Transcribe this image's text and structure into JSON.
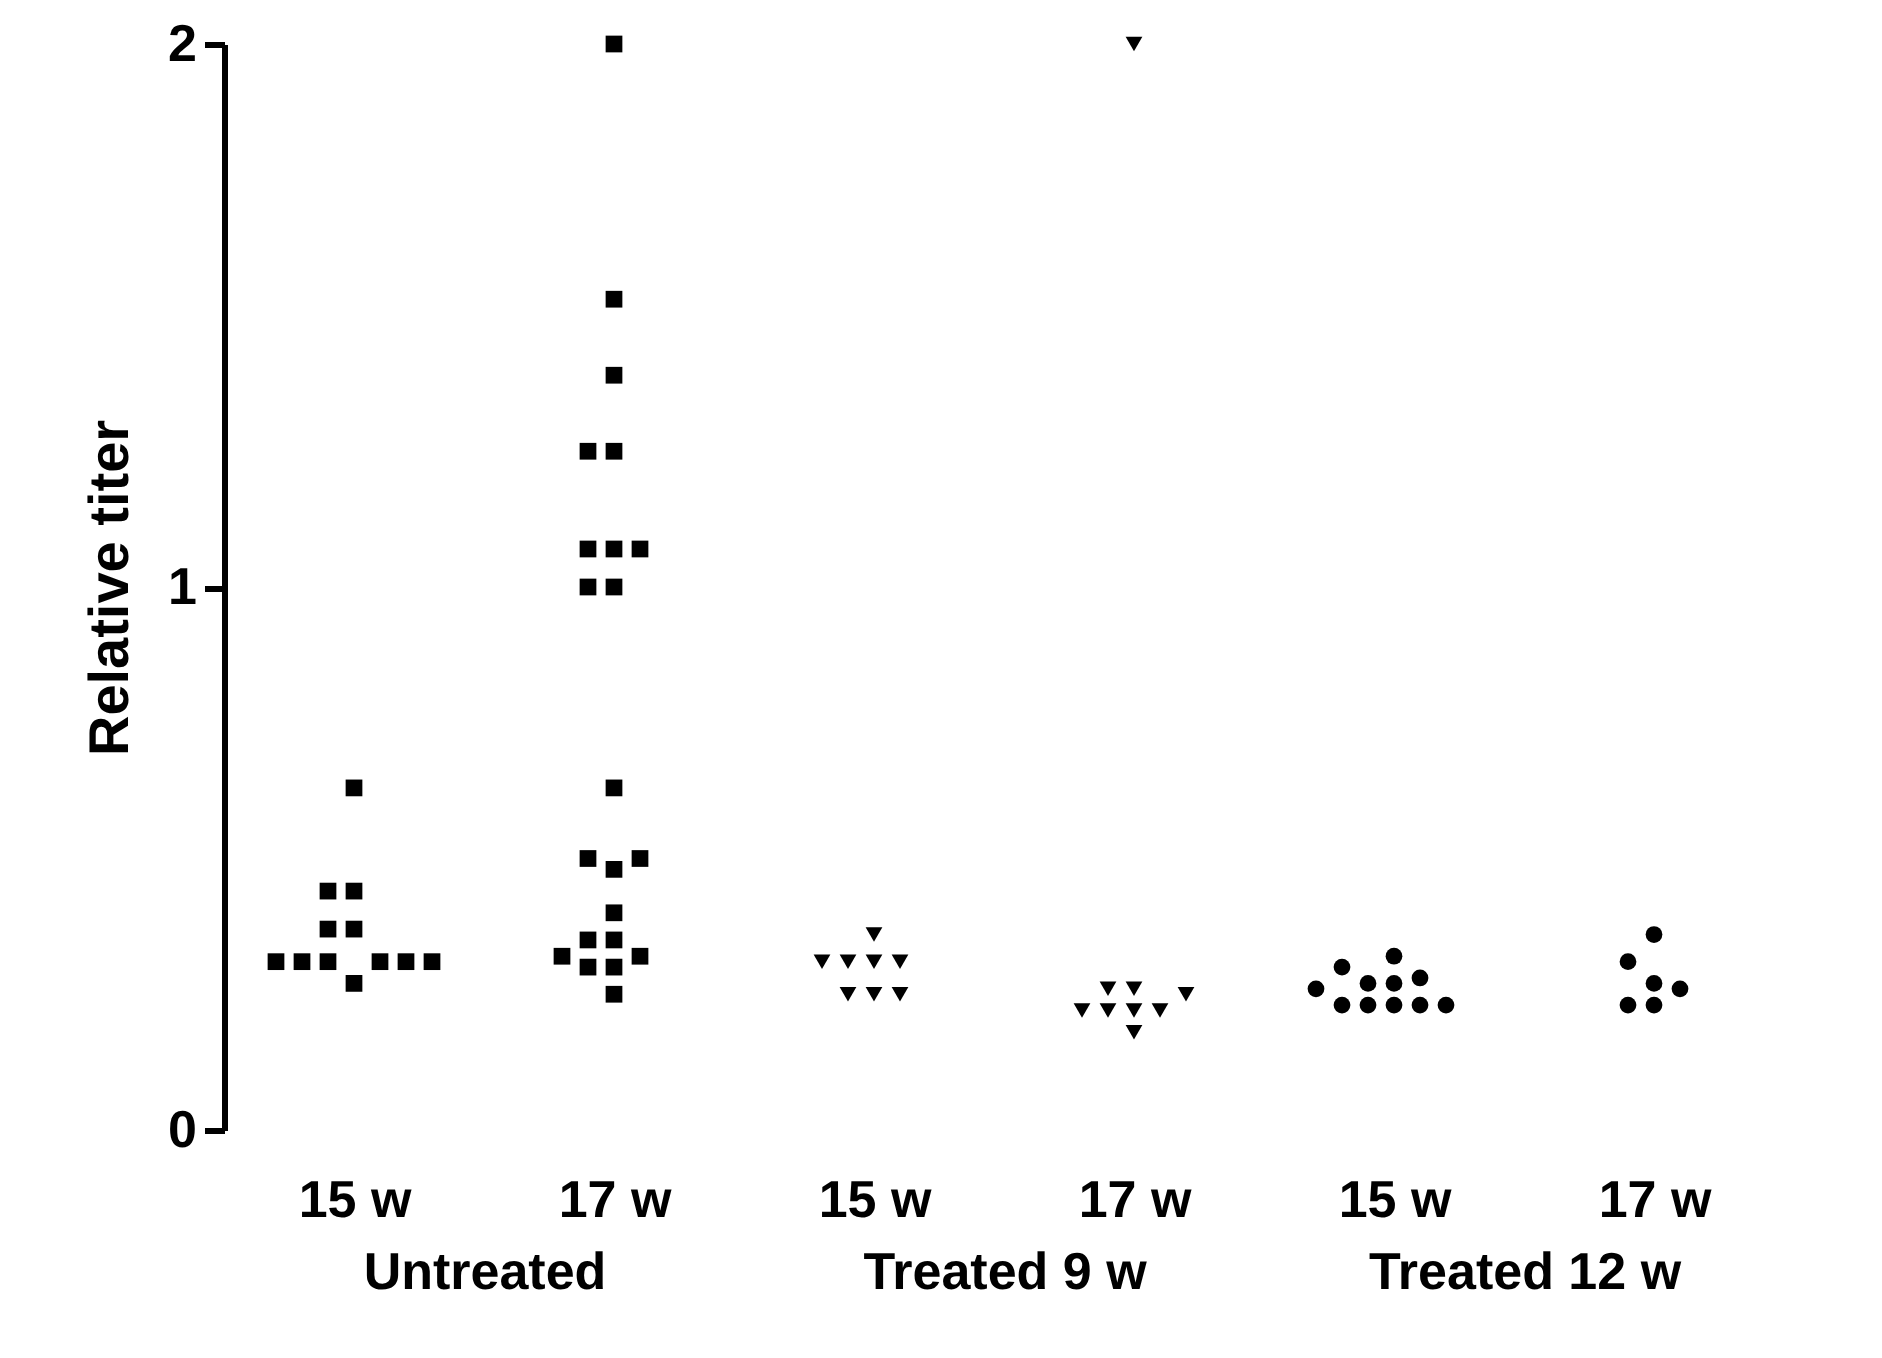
{
  "chart_data": [
    {
      "type": "scatter",
      "ylabel": "Relative titer",
      "xlabel": "Untreated",
      "categories": [
        "15 w",
        "17 w"
      ],
      "ylim": [
        0,
        2
      ],
      "yticks": [
        0,
        1,
        2
      ],
      "marker": "square",
      "grid": false,
      "series": [
        {
          "color": "#000000",
          "x": [
            "15 w",
            "15 w",
            "15 w",
            "15 w",
            "15 w",
            "15 w",
            "15 w",
            "15 w",
            "15 w",
            "15 w",
            "15 w",
            "15 w"
          ],
          "values": [
            0.63,
            0.44,
            0.44,
            0.37,
            0.37,
            0.31,
            0.31,
            0.31,
            0.31,
            0.31,
            0.31,
            0.27
          ]
        },
        {
          "color": "#000000",
          "x": [
            "17 w",
            "17 w",
            "17 w",
            "17 w",
            "17 w",
            "17 w",
            "17 w",
            "17 w",
            "17 w",
            "17 w",
            "17 w",
            "17 w",
            "17 w",
            "17 w",
            "17 w",
            "17 w",
            "17 w",
            "17 w",
            "17 w",
            "17 w",
            "17 w",
            "17 w"
          ],
          "values": [
            2.0,
            1.53,
            1.39,
            1.25,
            1.25,
            1.07,
            1.07,
            1.07,
            1.0,
            1.0,
            0.63,
            0.5,
            0.5,
            0.48,
            0.4,
            0.35,
            0.35,
            0.32,
            0.32,
            0.3,
            0.3,
            0.25
          ]
        }
      ]
    },
    {
      "type": "scatter",
      "xlabel": "Treated 9 w",
      "categories": [
        "15 w",
        "17 w"
      ],
      "ylim": [
        0,
        2
      ],
      "yticks": [
        0,
        1,
        2
      ],
      "tick_labels": "x",
      "marker": "triangle",
      "grid": false,
      "series": [
        {
          "color": "#000000",
          "x": [
            "15 w",
            "15 w",
            "15 w",
            "15 w",
            "15 w",
            "15 w",
            "15 w",
            "15 w"
          ],
          "values": [
            0.36,
            0.31,
            0.31,
            0.31,
            0.31,
            0.25,
            0.25,
            0.25
          ]
        },
        {
          "color": "#000000",
          "x": [
            "17 w",
            "17 w",
            "17 w",
            "17 w",
            "17 w",
            "17 w",
            "17 w",
            "17 w",
            "17 w"
          ],
          "values": [
            2.0,
            0.26,
            0.26,
            0.25,
            0.22,
            0.22,
            0.22,
            0.22,
            0.18
          ]
        }
      ]
    },
    {
      "type": "scatter",
      "xlabel": "Treated 12 w",
      "categories": [
        "15 w",
        "17 w"
      ],
      "ylim": [
        0,
        2
      ],
      "yticks": [
        0,
        1,
        2
      ],
      "tick_labels": "x",
      "marker": "circle",
      "grid": false,
      "series": [
        {
          "color": "#000000",
          "x": [
            "15 w",
            "15 w",
            "15 w",
            "15 w",
            "15 w",
            "15 w",
            "15 w",
            "15 w",
            "15 w",
            "15 w",
            "15 w"
          ],
          "values": [
            0.32,
            0.3,
            0.28,
            0.27,
            0.27,
            0.26,
            0.23,
            0.23,
            0.23,
            0.23,
            0.23
          ]
        },
        {
          "color": "#000000",
          "x": [
            "17 w",
            "17 w",
            "17 w",
            "17 w",
            "17 w",
            "17 w"
          ],
          "values": [
            0.36,
            0.31,
            0.27,
            0.26,
            0.23,
            0.23
          ]
        }
      ]
    }
  ]
}
